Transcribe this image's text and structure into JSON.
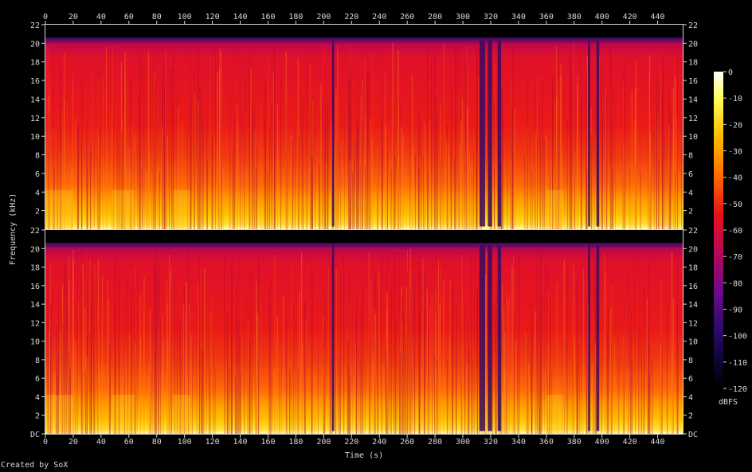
{
  "chart_data": {
    "type": "heatmap",
    "title": "",
    "xlabel": "Time (s)",
    "ylabel": "Frequency (kHz)",
    "x_ticks": [
      0,
      20,
      40,
      60,
      80,
      100,
      120,
      140,
      160,
      180,
      200,
      220,
      240,
      260,
      280,
      300,
      320,
      340,
      360,
      380,
      400,
      420,
      440
    ],
    "xlim": [
      0,
      458
    ],
    "y_ticks": [
      "DC",
      "2",
      "4",
      "6",
      "8",
      "10",
      "12",
      "14",
      "16",
      "18",
      "20",
      "22"
    ],
    "ylim_khz": [
      0,
      22
    ],
    "channels": 2,
    "colorbar": {
      "label": "dBFS",
      "ticks": [
        0,
        -10,
        -20,
        -30,
        -40,
        -50,
        -60,
        -70,
        -80,
        -90,
        -100,
        -110,
        -120
      ],
      "range": [
        -120,
        0
      ]
    },
    "dropouts_s": [
      {
        "t": 206,
        "width": 1.5
      },
      {
        "t": 312,
        "width": 4
      },
      {
        "t": 318,
        "width": 3
      },
      {
        "t": 325,
        "width": 2.5
      },
      {
        "t": 390,
        "width": 1.5
      },
      {
        "t": 396,
        "width": 2
      }
    ],
    "bright_segments_s": [
      [
        0,
        20
      ],
      [
        48,
        64
      ],
      [
        92,
        104
      ],
      [
        360,
        372
      ]
    ],
    "colors": {
      "background": "#000000",
      "plot_frame": "#000000",
      "cmap": [
        "#000000",
        "#1a0a4a",
        "#3b0a7a",
        "#7a0a8a",
        "#b80a5a",
        "#e0101a",
        "#ff3a00",
        "#ff7a00",
        "#ffb000",
        "#ffe000",
        "#ffff80",
        "#ffffff"
      ]
    },
    "grid": false
  },
  "footer": {
    "credit": "Created by SoX"
  }
}
